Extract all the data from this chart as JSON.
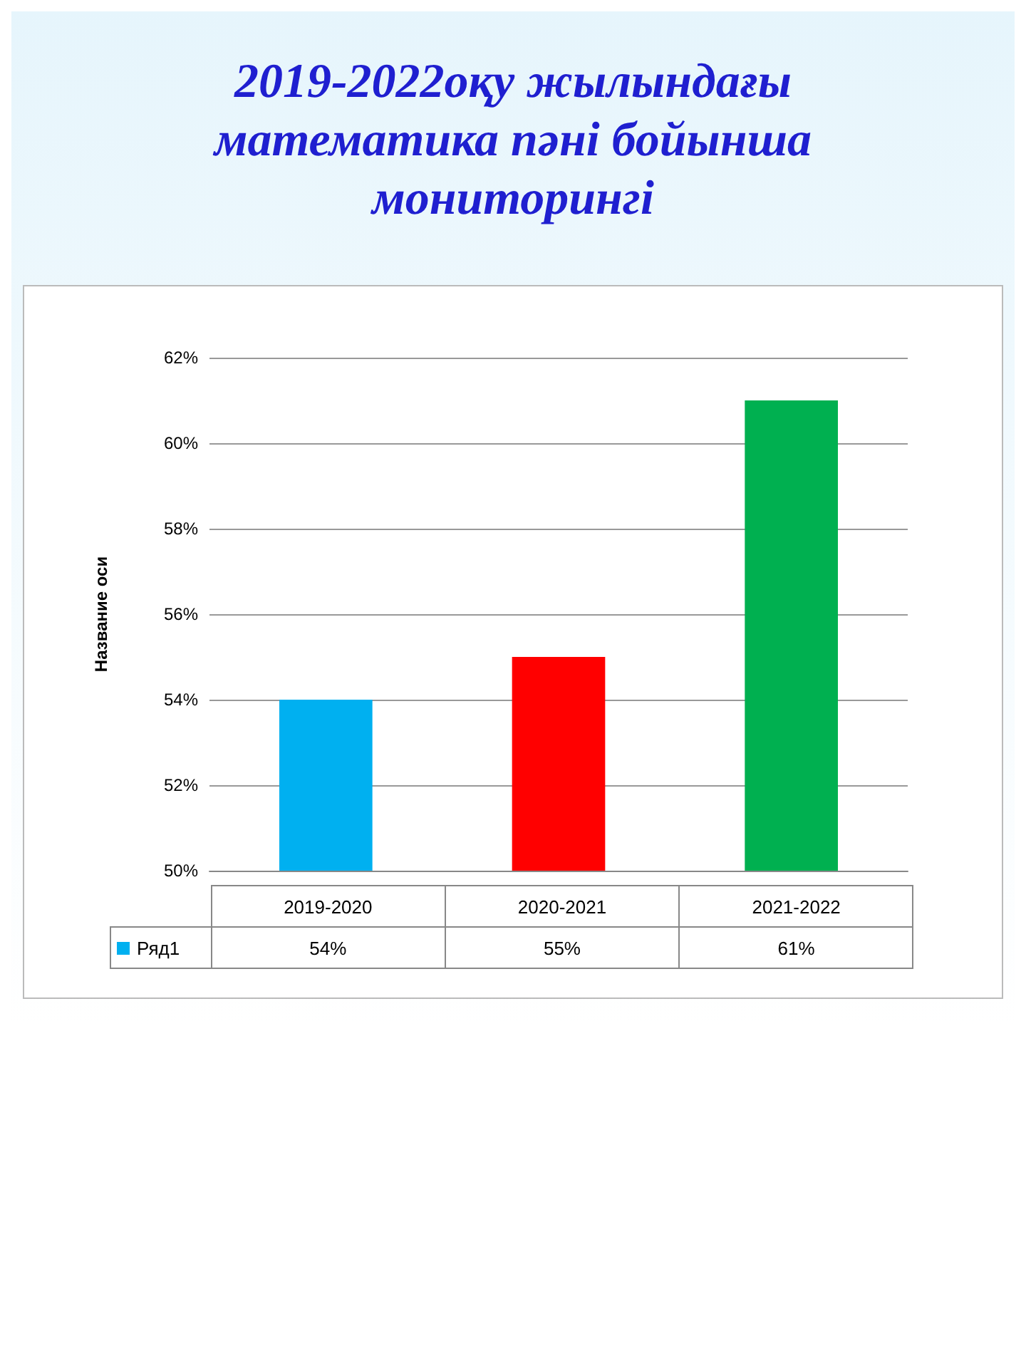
{
  "chart_data": {
    "type": "bar",
    "title": "2019-2022оқу жылындағы математика пәні бойынша мониторингі",
    "ylabel": "Название оси",
    "categories": [
      "2019-2020",
      "2020-2021",
      "2021-2022"
    ],
    "series": [
      {
        "name": "Ряд1",
        "color": "#00b0f0",
        "colors": [
          "#00b0f0",
          "#ff0000",
          "#00b050"
        ],
        "values": [
          54,
          55,
          61
        ],
        "value_labels": [
          "54%",
          "55%",
          "61%"
        ]
      }
    ],
    "ylim": [
      50,
      62
    ],
    "yticks": [
      {
        "value": 50,
        "label": "50%"
      },
      {
        "value": 52,
        "label": "52%"
      },
      {
        "value": 54,
        "label": "54%"
      },
      {
        "value": 56,
        "label": "56%"
      },
      {
        "value": 58,
        "label": "58%"
      },
      {
        "value": 60,
        "label": "60%"
      },
      {
        "value": 62,
        "label": "62%"
      }
    ],
    "grid": "y",
    "legend": "bottom"
  }
}
